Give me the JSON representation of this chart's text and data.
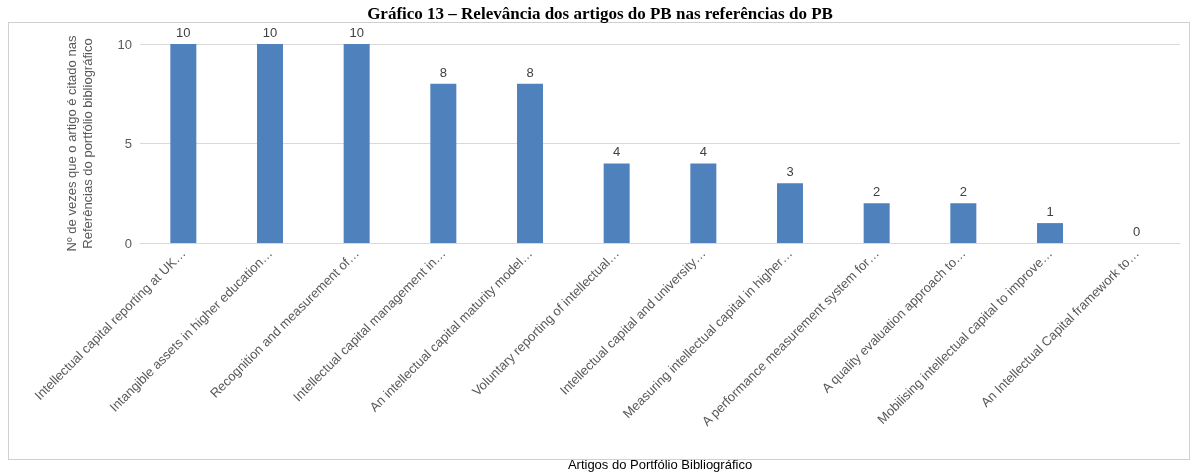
{
  "chart_data": {
    "type": "bar",
    "title": "Gráfico 13 – Relevância dos artigos do PB nas referências do PB",
    "xlabel": "Artigos do Portfólio Bibliográfico",
    "ylabel": "Nº de vezes que o artigo é citado nas\nReferências do portfólio bibliográfico",
    "categories": [
      "Intellectual capital reporting at UK…",
      "Intangible assets in higher education…",
      "Recognition and measurement of…",
      "Intellectual capital management in…",
      "An intellectual capital maturity model…",
      "Voluntary reporting of intellectual…",
      "Intellectual capital and university…",
      "Measuring intellectual capital in higher…",
      "A performance measurement system for…",
      "A quality evaluation approach to…",
      "Mobilising intellectual capital to improve…",
      "An Intellectual Capital framework to…"
    ],
    "values": [
      10,
      10,
      10,
      8,
      8,
      4,
      4,
      3,
      2,
      2,
      1,
      0
    ],
    "color": "#4f81bd",
    "ylim": [
      0,
      10
    ],
    "yticks": [
      0,
      5,
      10
    ],
    "grid": "y",
    "data_labels": true
  }
}
